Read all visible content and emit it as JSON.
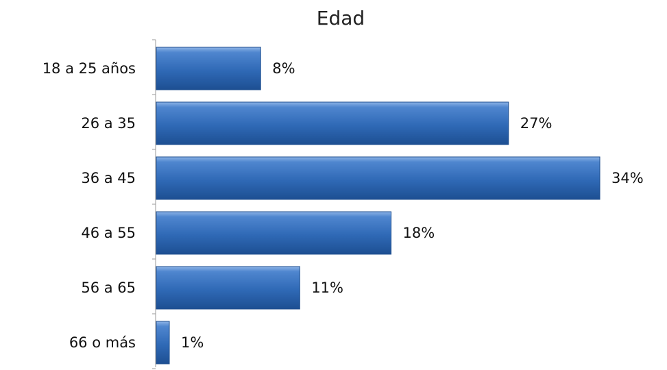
{
  "chart_data": {
    "type": "bar",
    "orientation": "horizontal",
    "title": "Edad",
    "categories": [
      "18 a 25 años",
      "26 a 35",
      "36 a 45",
      "46 a 55",
      "56 a 65",
      "66 o más"
    ],
    "values": [
      8,
      27,
      34,
      18,
      11,
      1
    ],
    "data_labels": [
      "8%",
      "27%",
      "34%",
      "18%",
      "11%",
      "1%"
    ],
    "unit": "%",
    "xlim": [
      0,
      34
    ],
    "grid": false,
    "legend": "none",
    "bar_color": "#2E6BB8"
  }
}
